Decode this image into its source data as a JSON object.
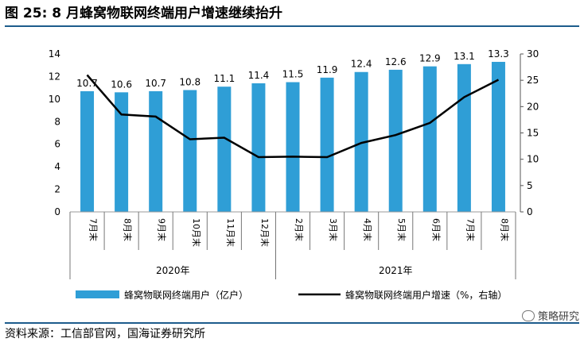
{
  "title": "图 25:  8 月蜂窝物联网终端用户增速继续抬升",
  "source": "资料来源：工信部官网，国海证券研究所",
  "watermark": "策略研究",
  "colors": {
    "bar": "#2f9ed6",
    "line": "#000000",
    "rule": "#1d5c8c"
  },
  "chart_data": {
    "type": "bar",
    "categories": [
      "7月末",
      "8月末",
      "9月末",
      "10月末",
      "11月末",
      "12月末",
      "2月末",
      "3月末",
      "4月末",
      "5月末",
      "6月末",
      "7月末",
      "8月末"
    ],
    "groups": [
      {
        "label": "2020年",
        "start": 0,
        "end": 5
      },
      {
        "label": "2021年",
        "start": 6,
        "end": 12
      }
    ],
    "series": [
      {
        "name": "蜂窝物联网终端用户（亿户）",
        "type": "bar",
        "axis": "left",
        "values": [
          10.7,
          10.6,
          10.7,
          10.8,
          11.1,
          11.4,
          11.5,
          11.9,
          12.4,
          12.6,
          12.9,
          13.1,
          13.3
        ],
        "labels": [
          "10.7",
          "10.6",
          "10.7",
          "10.8",
          "11.1",
          "11.4",
          "11.5",
          "11.9",
          "12.4",
          "12.6",
          "12.9",
          "13.1",
          "13.3"
        ]
      },
      {
        "name": "蜂窝物联网终端用户增速（%，右轴）",
        "type": "line",
        "axis": "right",
        "values": [
          26.0,
          18.5,
          18.1,
          13.8,
          14.1,
          10.4,
          10.5,
          10.4,
          13.1,
          14.6,
          16.9,
          21.8,
          25.1
        ]
      }
    ],
    "y_left": {
      "min": 0,
      "max": 14,
      "ticks": [
        0,
        2,
        4,
        6,
        8,
        10,
        12,
        14
      ]
    },
    "y_right": {
      "min": 0,
      "max": 30,
      "ticks": [
        0,
        5,
        10,
        15,
        20,
        25,
        30
      ]
    },
    "grid": false,
    "legend_position": "bottom"
  }
}
